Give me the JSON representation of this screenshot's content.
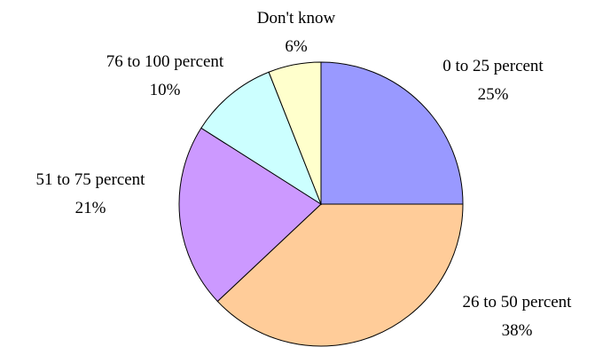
{
  "chart_data": {
    "type": "pie",
    "title": "",
    "start_angle_deg": 90,
    "direction": "clockwise",
    "slices": [
      {
        "label": "0 to 25 percent",
        "value": 25,
        "display": "25%",
        "color": "#9999ff"
      },
      {
        "label": "26 to 50 percent",
        "value": 38,
        "display": "38%",
        "color": "#ffcc99"
      },
      {
        "label": "51 to 75 percent",
        "value": 21,
        "display": "21%",
        "color": "#cc99ff"
      },
      {
        "label": "76 to 100 percent",
        "value": 10,
        "display": "10%",
        "color": "#ccffff"
      },
      {
        "label": "Don't know",
        "value": 6,
        "display": "6%",
        "color": "#ffffcc"
      }
    ]
  }
}
